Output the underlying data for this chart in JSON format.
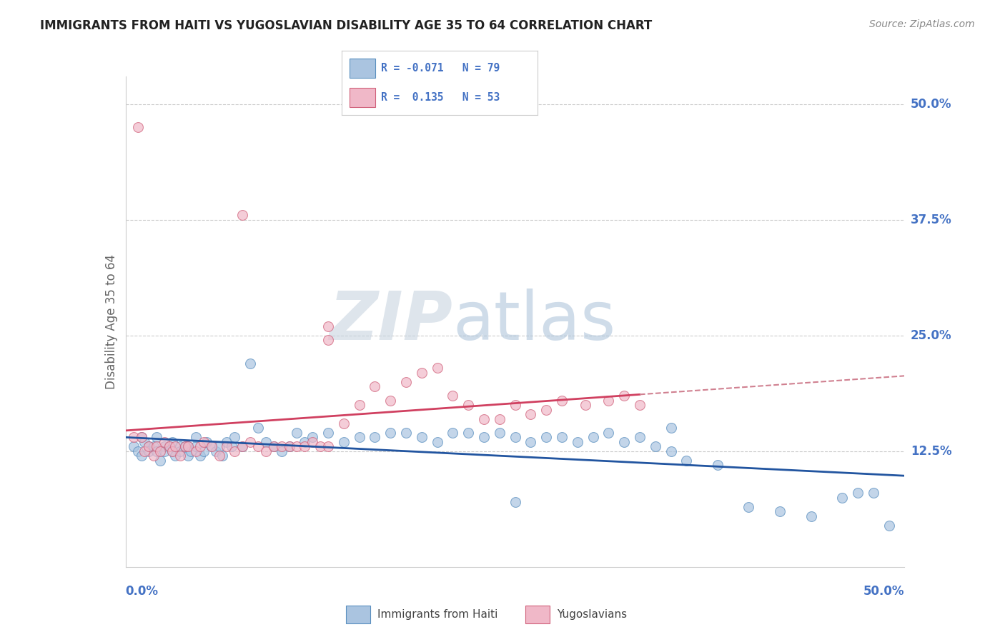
{
  "title": "IMMIGRANTS FROM HAITI VS YUGOSLAVIAN DISABILITY AGE 35 TO 64 CORRELATION CHART",
  "source": "Source: ZipAtlas.com",
  "ylabel": "Disability Age 35 to 64",
  "ytick_labels": [
    "12.5%",
    "25.0%",
    "37.5%",
    "50.0%"
  ],
  "ytick_values": [
    0.125,
    0.25,
    0.375,
    0.5
  ],
  "xlim": [
    0.0,
    0.5
  ],
  "ylim": [
    0.0,
    0.53
  ],
  "haiti_color": "#aac4e0",
  "haiti_edge": "#5a8fbf",
  "yugo_color": "#f0b8c8",
  "yugo_edge": "#d0607a",
  "haiti_line_color": "#2255a0",
  "yugo_line_color": "#d04060",
  "yugo_dash_color": "#d08090",
  "background_color": "#ffffff",
  "grid_color": "#cccccc",
  "right_axis_color": "#4472C4",
  "watermark_color": "#d0dce8",
  "haiti_scatter_x": [
    0.005,
    0.008,
    0.01,
    0.01,
    0.012,
    0.015,
    0.015,
    0.018,
    0.02,
    0.02,
    0.022,
    0.025,
    0.025,
    0.028,
    0.03,
    0.03,
    0.032,
    0.035,
    0.035,
    0.038,
    0.04,
    0.04,
    0.042,
    0.045,
    0.045,
    0.048,
    0.05,
    0.052,
    0.055,
    0.058,
    0.06,
    0.062,
    0.065,
    0.068,
    0.07,
    0.075,
    0.08,
    0.085,
    0.09,
    0.095,
    0.1,
    0.105,
    0.11,
    0.115,
    0.12,
    0.13,
    0.14,
    0.15,
    0.16,
    0.17,
    0.18,
    0.19,
    0.2,
    0.21,
    0.22,
    0.23,
    0.24,
    0.25,
    0.26,
    0.27,
    0.28,
    0.29,
    0.3,
    0.31,
    0.32,
    0.33,
    0.34,
    0.35,
    0.36,
    0.38,
    0.4,
    0.42,
    0.44,
    0.46,
    0.47,
    0.48,
    0.49,
    0.35,
    0.25
  ],
  "haiti_scatter_y": [
    0.13,
    0.125,
    0.14,
    0.12,
    0.135,
    0.13,
    0.125,
    0.13,
    0.125,
    0.14,
    0.115,
    0.13,
    0.125,
    0.13,
    0.125,
    0.135,
    0.12,
    0.13,
    0.125,
    0.13,
    0.12,
    0.13,
    0.125,
    0.13,
    0.14,
    0.12,
    0.125,
    0.135,
    0.13,
    0.125,
    0.13,
    0.12,
    0.135,
    0.13,
    0.14,
    0.13,
    0.22,
    0.15,
    0.135,
    0.13,
    0.125,
    0.13,
    0.145,
    0.135,
    0.14,
    0.145,
    0.135,
    0.14,
    0.14,
    0.145,
    0.145,
    0.14,
    0.135,
    0.145,
    0.145,
    0.14,
    0.145,
    0.14,
    0.135,
    0.14,
    0.14,
    0.135,
    0.14,
    0.145,
    0.135,
    0.14,
    0.13,
    0.125,
    0.115,
    0.11,
    0.065,
    0.06,
    0.055,
    0.075,
    0.08,
    0.08,
    0.045,
    0.15,
    0.07
  ],
  "yugo_scatter_x": [
    0.005,
    0.008,
    0.01,
    0.012,
    0.015,
    0.018,
    0.02,
    0.022,
    0.025,
    0.028,
    0.03,
    0.032,
    0.035,
    0.038,
    0.04,
    0.045,
    0.048,
    0.05,
    0.055,
    0.06,
    0.065,
    0.07,
    0.075,
    0.08,
    0.085,
    0.09,
    0.095,
    0.1,
    0.105,
    0.11,
    0.115,
    0.12,
    0.125,
    0.13,
    0.14,
    0.15,
    0.16,
    0.17,
    0.18,
    0.19,
    0.2,
    0.21,
    0.22,
    0.23,
    0.24,
    0.25,
    0.26,
    0.27,
    0.28,
    0.295,
    0.31,
    0.32,
    0.33
  ],
  "yugo_scatter_y": [
    0.14,
    0.475,
    0.14,
    0.125,
    0.13,
    0.12,
    0.13,
    0.125,
    0.135,
    0.13,
    0.125,
    0.13,
    0.12,
    0.13,
    0.13,
    0.125,
    0.13,
    0.135,
    0.13,
    0.12,
    0.13,
    0.125,
    0.13,
    0.135,
    0.13,
    0.125,
    0.13,
    0.13,
    0.13,
    0.13,
    0.13,
    0.135,
    0.13,
    0.13,
    0.155,
    0.175,
    0.195,
    0.18,
    0.2,
    0.21,
    0.215,
    0.185,
    0.175,
    0.16,
    0.16,
    0.175,
    0.165,
    0.17,
    0.18,
    0.175,
    0.18,
    0.185,
    0.175
  ]
}
